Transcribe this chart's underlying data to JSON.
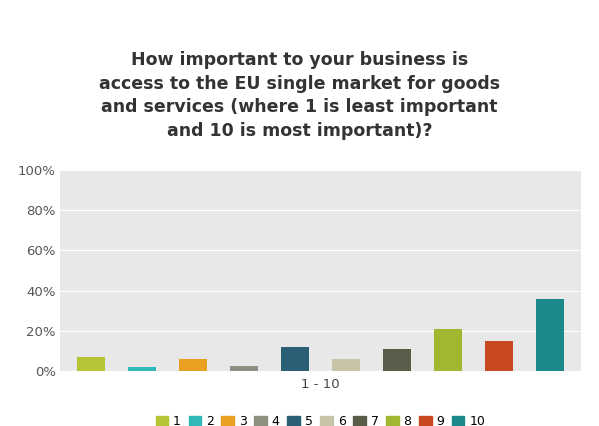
{
  "title": "How important to your business is\naccess to the EU single market for goods\nand services (where 1 is least important\nand 10 is most important)?",
  "xlabel": "1 - 10",
  "categories": [
    1,
    2,
    3,
    4,
    5,
    6,
    7,
    8,
    9,
    10
  ],
  "values": [
    7,
    2,
    6,
    2.5,
    12,
    6,
    11,
    21,
    15,
    36
  ],
  "colors": [
    "#b5c334",
    "#2eb8b8",
    "#e8a020",
    "#909080",
    "#2b5f75",
    "#c8c4a8",
    "#5c5c4a",
    "#a0b830",
    "#c84820",
    "#1a8a8a"
  ],
  "legend_labels": [
    "1",
    "2",
    "3",
    "4",
    "5",
    "6",
    "7",
    "8",
    "9",
    "10"
  ],
  "ylim": [
    0,
    100
  ],
  "yticks": [
    0,
    20,
    40,
    60,
    80,
    100
  ],
  "ytick_labels": [
    "0%",
    "20%",
    "40%",
    "60%",
    "80%",
    "100%"
  ],
  "background_color": "#e8e8e8",
  "fig_background": "#ffffff",
  "title_fontsize": 12.5,
  "axis_fontsize": 9.5,
  "legend_fontsize": 9
}
